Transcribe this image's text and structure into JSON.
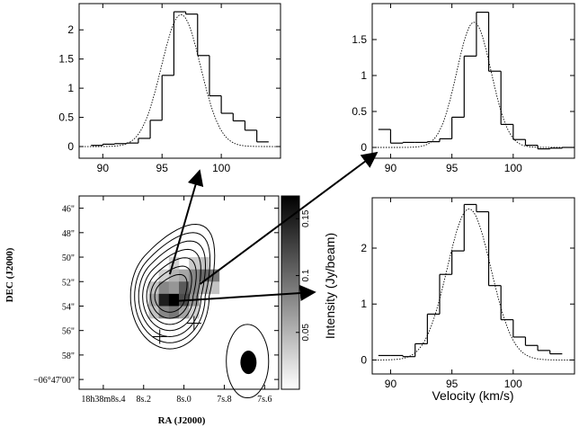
{
  "colors": {
    "ink": "#000000",
    "background": "#ffffff"
  },
  "chart_data": [
    {
      "type": "line",
      "panel": "spectrum-top-left",
      "description_series": [
        "observed histogram",
        "gaussian fit (dotted)"
      ],
      "xlim": [
        88,
        105
      ],
      "ylim": [
        -0.2,
        2.45
      ],
      "xticks": [
        90,
        95,
        100
      ],
      "yticks": [
        0,
        0.5,
        1,
        1.5,
        2
      ],
      "ytick_labels": [
        "0",
        "0.5",
        "1",
        "1.5",
        "2"
      ],
      "xtick_labels": [
        "90",
        "95",
        "100"
      ],
      "series": [
        {
          "name": "observed",
          "style": "step",
          "edges": [
            89,
            90,
            91,
            92,
            93,
            94,
            95,
            96,
            97,
            98,
            99,
            100,
            101,
            102,
            103,
            104
          ],
          "values": [
            0.02,
            0.04,
            0.05,
            0.06,
            0.14,
            0.45,
            1.22,
            2.31,
            2.27,
            1.56,
            0.87,
            0.57,
            0.44,
            0.28,
            0.08
          ]
        },
        {
          "name": "gaussian-fit",
          "style": "dotted",
          "amp": 2.26,
          "center": 96.6,
          "fwhm": 3.9
        }
      ]
    },
    {
      "type": "line",
      "panel": "spectrum-top-right",
      "xlim": [
        88.5,
        105
      ],
      "ylim": [
        -0.15,
        2.0
      ],
      "xticks": [
        90,
        95,
        100
      ],
      "yticks": [
        0,
        0.5,
        1,
        1.5
      ],
      "ytick_labels": [
        "0",
        "0.5",
        "1",
        "1.5"
      ],
      "xtick_labels": [
        "90",
        "95",
        "100"
      ],
      "series": [
        {
          "name": "observed",
          "style": "step",
          "edges": [
            89,
            90,
            91,
            92,
            93,
            94,
            95,
            96,
            97,
            98,
            99,
            100,
            101,
            102,
            103,
            104,
            105
          ],
          "values": [
            0.25,
            0.06,
            0.07,
            0.07,
            0.08,
            0.12,
            0.42,
            1.27,
            1.88,
            1.06,
            0.32,
            0.11,
            0.03,
            -0.02,
            -0.01,
            0.0
          ]
        },
        {
          "name": "gaussian-fit",
          "style": "dotted",
          "amp": 1.74,
          "center": 96.8,
          "fwhm": 3.3
        }
      ]
    },
    {
      "type": "line",
      "panel": "spectrum-bottom-right",
      "xlim": [
        88.5,
        105
      ],
      "ylim": [
        -0.25,
        2.9
      ],
      "xticks": [
        90,
        95,
        100
      ],
      "yticks": [
        0,
        1,
        2
      ],
      "ytick_labels": [
        "0",
        "1",
        "2"
      ],
      "xtick_labels": [
        "90",
        "95",
        "100"
      ],
      "xlabel": "Velocity (km/s)",
      "ylabel": "Intensity (Jy/beam)",
      "series": [
        {
          "name": "observed",
          "style": "step",
          "edges": [
            89,
            90,
            91,
            92,
            93,
            94,
            95,
            96,
            97,
            98,
            99,
            100,
            101,
            102,
            103,
            104
          ],
          "values": [
            0.08,
            0.08,
            0.06,
            0.29,
            0.82,
            1.53,
            1.95,
            2.78,
            2.65,
            1.33,
            0.72,
            0.41,
            0.26,
            0.17,
            0.11
          ]
        },
        {
          "name": "gaussian-fit",
          "style": "dotted",
          "amp": 2.7,
          "center": 96.4,
          "fwhm": 4.2
        }
      ]
    },
    {
      "type": "heatmap",
      "panel": "map",
      "xlabel": "RA (J2000)",
      "ylabel": "DEC (J2000)",
      "ra_ticks_sec": [
        8.4,
        8.2,
        8.0,
        7.8,
        7.6
      ],
      "ra_tick_labels": [
        "18h38m8s.4",
        "8s.2",
        "8s.0",
        "7s.8",
        "7s.6"
      ],
      "dec_ticks_arcsec": [
        46,
        48,
        50,
        52,
        54,
        56,
        58,
        60
      ],
      "dec_tick_labels": [
        "46\"",
        "48\"",
        "50\"",
        "52\"",
        "54\"",
        "56\"",
        "58\"",
        "−06°47′00\""
      ],
      "xlim_ra_sec": [
        8.52,
        7.53
      ],
      "ylim_dec_arcsec": [
        45,
        60.8
      ],
      "pixel_size_ra_sec": 0.05,
      "pixel_size_dec_arcsec": 1.0,
      "pixels": [
        {
          "ra": 8.05,
          "dec": 50.5,
          "v": 0.03
        },
        {
          "ra": 7.95,
          "dec": 50.5,
          "v": 0.035
        },
        {
          "ra": 7.9,
          "dec": 50.5,
          "v": 0.04
        },
        {
          "ra": 8.1,
          "dec": 51.5,
          "v": 0.03
        },
        {
          "ra": 8.05,
          "dec": 51.5,
          "v": 0.05
        },
        {
          "ra": 8.0,
          "dec": 51.5,
          "v": 0.06
        },
        {
          "ra": 7.95,
          "dec": 51.5,
          "v": 0.08
        },
        {
          "ra": 7.9,
          "dec": 51.5,
          "v": 0.1
        },
        {
          "ra": 7.85,
          "dec": 51.5,
          "v": 0.09
        },
        {
          "ra": 8.15,
          "dec": 52.5,
          "v": 0.04
        },
        {
          "ra": 8.1,
          "dec": 52.5,
          "v": 0.08
        },
        {
          "ra": 8.05,
          "dec": 52.5,
          "v": 0.07
        },
        {
          "ra": 8.0,
          "dec": 52.5,
          "v": 0.11
        },
        {
          "ra": 7.95,
          "dec": 52.5,
          "v": 0.08
        },
        {
          "ra": 7.9,
          "dec": 52.5,
          "v": 0.05
        },
        {
          "ra": 7.85,
          "dec": 52.5,
          "v": 0.04
        },
        {
          "ra": 8.15,
          "dec": 53.5,
          "v": 0.06
        },
        {
          "ra": 8.1,
          "dec": 53.5,
          "v": 0.15
        },
        {
          "ra": 8.05,
          "dec": 53.5,
          "v": 0.17
        },
        {
          "ra": 8.0,
          "dec": 53.5,
          "v": 0.12
        },
        {
          "ra": 7.95,
          "dec": 53.5,
          "v": 0.07
        },
        {
          "ra": 8.15,
          "dec": 54.5,
          "v": 0.04
        },
        {
          "ra": 8.1,
          "dec": 54.5,
          "v": 0.08
        },
        {
          "ra": 8.05,
          "dec": 54.5,
          "v": 0.09
        },
        {
          "ra": 8.0,
          "dec": 54.5,
          "v": 0.06
        },
        {
          "ra": 7.95,
          "dec": 54.5,
          "v": 0.03
        }
      ],
      "contours": {
        "center_ra": 8.07,
        "center_dec": 53.2,
        "radii_ra_sec": [
          0.075,
          0.095,
          0.115,
          0.135,
          0.155,
          0.175,
          0.195
        ],
        "radii_dec_arcsec": [
          1.3,
          1.8,
          2.3,
          2.8,
          3.3,
          3.8,
          4.3
        ]
      },
      "crosses": [
        {
          "ra": 7.95,
          "dec": 55.4
        },
        {
          "ra": 8.12,
          "dec": 56.5
        }
      ],
      "beam": {
        "ra": 7.68,
        "dec": 58.6,
        "major_arcsec": 1.6,
        "minor_ra_sec": 0.04
      },
      "beam_outline": {
        "ra": 7.685,
        "dec": 58.5,
        "rx_ra_sec": 0.105,
        "ry_arcsec": 3.0
      },
      "arrows": [
        {
          "from_ra": 8.07,
          "from_dec": 51.4,
          "to_panel": "spectrum-top-left"
        },
        {
          "from_ra": 7.92,
          "from_dec": 52.2,
          "to_panel": "spectrum-top-right"
        },
        {
          "from_ra": 8.05,
          "from_dec": 53.6,
          "to_panel": "spectrum-bottom-right"
        }
      ],
      "colorbar": {
        "range": [
          0.0,
          0.17
        ],
        "ticks": [
          0.05,
          0.1,
          0.15
        ],
        "tick_labels": [
          "0.05",
          "0.1",
          "0.15"
        ]
      }
    }
  ]
}
